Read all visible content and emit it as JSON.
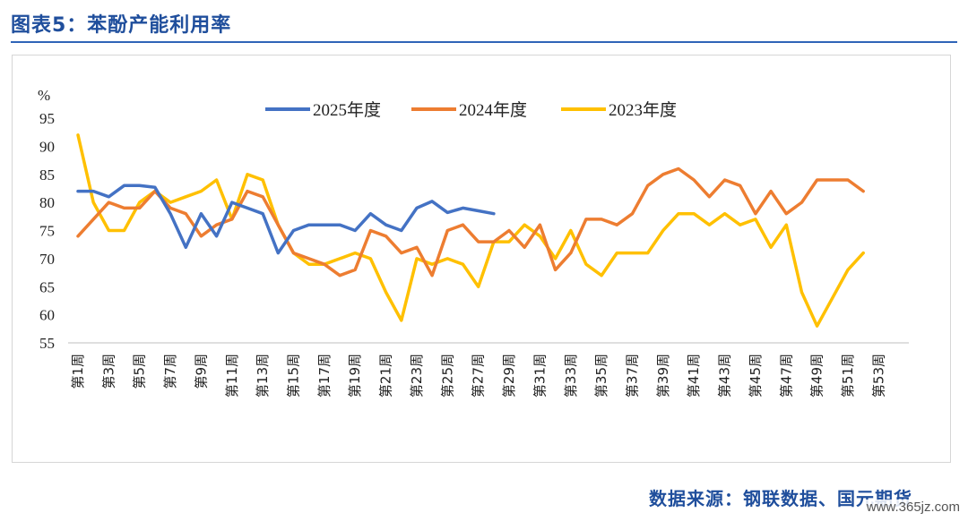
{
  "figure": {
    "title": "图表5：苯酚产能利用率",
    "source": "数据来源：钢联数据、国元期货",
    "watermark": "www.365jz.com"
  },
  "chart_data": {
    "type": "line",
    "ylabel": "%",
    "ylim": [
      55,
      95
    ],
    "yticks": [
      55,
      60,
      65,
      70,
      75,
      80,
      85,
      90,
      95
    ],
    "grid": false,
    "legend_position": "top",
    "x_tick_labels": [
      "第1周",
      "第3周",
      "第5周",
      "第7周",
      "第9周",
      "第11周",
      "第13周",
      "第15周",
      "第17周",
      "第19周",
      "第21周",
      "第23周",
      "第25周",
      "第27周",
      "第29周",
      "第31周",
      "第33周",
      "第35周",
      "第37周",
      "第39周",
      "第41周",
      "第43周",
      "第45周",
      "第47周",
      "第49周",
      "第51周",
      "第53周"
    ],
    "series": [
      {
        "name": "2025年度",
        "color": "#4472c4",
        "values": [
          82,
          82,
          81,
          83,
          83,
          82.7,
          78,
          72,
          78,
          74,
          80,
          79,
          78,
          71,
          75,
          76,
          76,
          76,
          75,
          78,
          76,
          75,
          79,
          80.2,
          78.2,
          79,
          78.5,
          78
        ]
      },
      {
        "name": "2024年度",
        "color": "#ed7d31",
        "values": [
          74,
          77,
          80,
          79,
          79,
          82,
          79,
          78,
          74,
          76,
          77,
          82,
          81,
          76,
          71,
          70,
          69,
          67,
          68,
          75,
          74,
          71,
          72,
          67,
          75,
          76,
          73,
          73,
          75,
          72,
          76,
          68,
          71,
          77,
          77,
          76,
          78,
          83,
          85,
          86,
          84,
          81,
          84,
          83,
          78,
          82,
          78,
          80,
          84,
          84,
          84,
          82
        ]
      },
      {
        "name": "2023年度",
        "color": "#ffc000",
        "values": [
          92,
          80,
          75,
          75,
          80,
          82,
          80,
          81,
          82,
          84,
          77,
          85,
          84,
          76,
          71,
          69,
          69,
          70,
          71,
          70,
          64,
          59,
          70,
          69,
          70,
          69,
          65,
          73,
          73,
          76,
          74,
          70,
          75,
          69,
          67,
          71,
          71,
          71,
          75,
          78,
          78,
          76,
          78,
          76,
          77,
          72,
          76,
          64,
          58,
          63,
          68,
          71
        ]
      }
    ]
  }
}
